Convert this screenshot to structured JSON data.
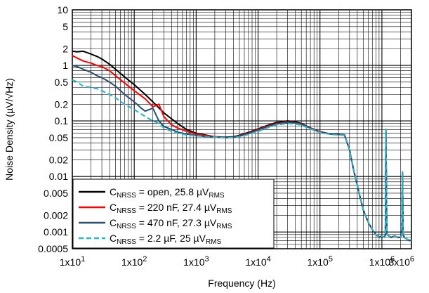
{
  "chart_data": {
    "type": "line",
    "xlabel": "Frequency (Hz)",
    "ylabel": "Noise Density (µV/√Hz)",
    "xscale": "log",
    "yscale": "log",
    "xlim": [
      10,
      3000000
    ],
    "ylim": [
      0.0005,
      10
    ],
    "grid": true,
    "legend_position": "bottom-left",
    "x_ticks": [
      {
        "value": 10,
        "label": "1x10",
        "exp": "1"
      },
      {
        "value": 100,
        "label": "1x10",
        "exp": "2"
      },
      {
        "value": 1000,
        "label": "1x10",
        "exp": "3"
      },
      {
        "value": 10000,
        "label": "1x10",
        "exp": "4"
      },
      {
        "value": 100000,
        "label": "1x10",
        "exp": "5"
      },
      {
        "value": 1000000,
        "label": "1x10",
        "exp": "6"
      },
      {
        "value": 3000000,
        "label": "3x10",
        "exp": "6"
      }
    ],
    "y_ticks": [
      {
        "value": 10,
        "label": "10"
      },
      {
        "value": 5,
        "label": "5"
      },
      {
        "value": 2,
        "label": "2"
      },
      {
        "value": 1,
        "label": "1"
      },
      {
        "value": 0.5,
        "label": "0.5"
      },
      {
        "value": 0.2,
        "label": "0.2"
      },
      {
        "value": 0.1,
        "label": "0.1"
      },
      {
        "value": 0.05,
        "label": "0.05"
      },
      {
        "value": 0.02,
        "label": "0.02"
      },
      {
        "value": 0.01,
        "label": "0.01"
      },
      {
        "value": 0.005,
        "label": "0.005"
      },
      {
        "value": 0.002,
        "label": "0.002"
      },
      {
        "value": 0.001,
        "label": "0.001"
      },
      {
        "value": 0.0005,
        "label": "0.0005"
      }
    ],
    "series": [
      {
        "legend_main": "C",
        "legend_sub": "NRSS",
        "legend_text": " = open, 25.8 µV",
        "legend_sub2": "RMS",
        "color": "#000000",
        "dash": "",
        "x": [
          10,
          12,
          15,
          20,
          25,
          30,
          40,
          50,
          70,
          100,
          150,
          200,
          300,
          500,
          700,
          1000,
          1500,
          2000,
          3000,
          4000,
          5000,
          7000,
          10000,
          15000,
          20000,
          30000,
          40000,
          50000,
          70000,
          100000,
          150000,
          200000,
          250000,
          300000,
          350000,
          400000,
          450000,
          500000,
          600000,
          700000,
          800000,
          900000,
          1000000,
          1100000,
          1140000,
          1160000,
          1200000,
          1400000,
          1600000,
          1800000,
          2000000,
          2100000,
          2150000,
          2200000,
          2300000,
          2500000,
          2800000,
          3000000
        ],
        "y": [
          1.8,
          1.75,
          1.8,
          1.6,
          1.45,
          1.3,
          1.05,
          0.85,
          0.62,
          0.45,
          0.3,
          0.22,
          0.14,
          0.09,
          0.07,
          0.06,
          0.055,
          0.052,
          0.051,
          0.052,
          0.055,
          0.062,
          0.072,
          0.085,
          0.094,
          0.1,
          0.097,
          0.09,
          0.075,
          0.064,
          0.058,
          0.057,
          0.056,
          0.03,
          0.013,
          0.007,
          0.004,
          0.0025,
          0.0015,
          0.0011,
          0.0009,
          0.0008,
          0.00085,
          0.0008,
          0.0009,
          0.07,
          0.0009,
          0.0008,
          0.00085,
          0.0008,
          0.0008,
          0.0009,
          0.012,
          0.0009,
          0.0008,
          0.00075,
          0.0007,
          0.00072
        ]
      },
      {
        "legend_main": "C",
        "legend_sub": "NRSS",
        "legend_text": " = 220 nF, 27.4 µV",
        "legend_sub2": "RMS",
        "color": "#ff0000",
        "dash": "",
        "x": [
          10,
          12,
          15,
          20,
          25,
          30,
          40,
          50,
          70,
          100,
          150,
          200,
          250,
          300,
          400,
          500,
          700,
          1000,
          1500,
          2000,
          3000,
          4000,
          5000,
          7000,
          10000,
          15000,
          20000,
          30000,
          40000,
          50000,
          70000,
          100000,
          150000,
          200000,
          250000,
          300000,
          350000,
          400000,
          450000,
          500000,
          600000,
          700000,
          800000,
          900000,
          1000000,
          1100000,
          1140000,
          1160000,
          1200000,
          1400000,
          1600000,
          1800000,
          2000000,
          2100000,
          2150000,
          2200000,
          2300000,
          2500000,
          2800000,
          3000000
        ],
        "y": [
          1.5,
          1.35,
          1.2,
          1.1,
          1.0,
          0.95,
          0.8,
          0.65,
          0.48,
          0.35,
          0.25,
          0.18,
          0.2,
          0.12,
          0.085,
          0.075,
          0.065,
          0.058,
          0.054,
          0.052,
          0.05,
          0.051,
          0.054,
          0.06,
          0.07,
          0.082,
          0.09,
          0.096,
          0.093,
          0.088,
          0.075,
          0.064,
          0.058,
          0.057,
          0.056,
          0.03,
          0.013,
          0.007,
          0.004,
          0.0025,
          0.0015,
          0.0011,
          0.0009,
          0.0008,
          0.00085,
          0.0008,
          0.0009,
          0.07,
          0.0009,
          0.0008,
          0.00085,
          0.0008,
          0.0008,
          0.0009,
          0.012,
          0.0009,
          0.0008,
          0.00075,
          0.0007,
          0.00072
        ]
      },
      {
        "legend_main": "C",
        "legend_sub": "NRSS",
        "legend_text": " = 470 nF, 27.3 µV",
        "legend_sub2": "RMS",
        "color": "#2a5070",
        "dash": "",
        "x": [
          10,
          12,
          15,
          20,
          25,
          30,
          40,
          50,
          70,
          100,
          130,
          150,
          200,
          250,
          300,
          400,
          500,
          700,
          1000,
          1500,
          2000,
          3000,
          4000,
          5000,
          7000,
          10000,
          15000,
          20000,
          30000,
          40000,
          50000,
          70000,
          100000,
          150000,
          200000,
          250000,
          300000,
          350000,
          400000,
          450000,
          500000,
          600000,
          700000,
          800000,
          900000,
          1000000,
          1100000,
          1140000,
          1160000,
          1200000,
          1400000,
          1600000,
          1800000,
          2000000,
          2100000,
          2150000,
          2200000,
          2300000,
          2500000,
          2800000,
          3000000
        ],
        "y": [
          1.0,
          0.95,
          0.85,
          0.75,
          0.65,
          0.6,
          0.5,
          0.42,
          0.3,
          0.22,
          0.17,
          0.15,
          0.17,
          0.1,
          0.08,
          0.07,
          0.063,
          0.058,
          0.055,
          0.052,
          0.051,
          0.05,
          0.051,
          0.053,
          0.059,
          0.068,
          0.08,
          0.088,
          0.094,
          0.092,
          0.087,
          0.074,
          0.063,
          0.058,
          0.057,
          0.056,
          0.03,
          0.013,
          0.007,
          0.004,
          0.0025,
          0.0015,
          0.0011,
          0.0009,
          0.0008,
          0.00085,
          0.0008,
          0.0009,
          0.07,
          0.0009,
          0.0008,
          0.00085,
          0.0008,
          0.0008,
          0.0009,
          0.012,
          0.0009,
          0.0008,
          0.00075,
          0.0007,
          0.00072
        ]
      },
      {
        "legend_main": "C",
        "legend_sub": "NRSS",
        "legend_text": " = 2.2 µF, 25 µV",
        "legend_sub2": "RMS",
        "color": "#20b8d0",
        "dash": "7,4",
        "x": [
          10,
          12,
          15,
          20,
          25,
          30,
          40,
          50,
          70,
          100,
          150,
          200,
          250,
          300,
          400,
          500,
          700,
          1000,
          1500,
          2000,
          3000,
          4000,
          5000,
          7000,
          10000,
          15000,
          20000,
          30000,
          40000,
          50000,
          70000,
          100000,
          150000,
          200000,
          250000,
          300000,
          350000,
          400000,
          450000,
          500000,
          600000,
          700000,
          800000,
          900000,
          1000000,
          1100000,
          1140000,
          1160000,
          1200000,
          1400000,
          1600000,
          1800000,
          2000000,
          2100000,
          2150000,
          2200000,
          2300000,
          2500000,
          2800000,
          3000000
        ],
        "y": [
          0.55,
          0.5,
          0.42,
          0.4,
          0.38,
          0.35,
          0.3,
          0.26,
          0.2,
          0.16,
          0.12,
          0.1,
          0.09,
          0.075,
          0.065,
          0.06,
          0.056,
          0.054,
          0.052,
          0.051,
          0.05,
          0.05,
          0.052,
          0.057,
          0.065,
          0.077,
          0.085,
          0.09,
          0.088,
          0.084,
          0.072,
          0.062,
          0.057,
          0.056,
          0.055,
          0.03,
          0.013,
          0.007,
          0.004,
          0.0025,
          0.0015,
          0.0011,
          0.0009,
          0.0008,
          0.00085,
          0.0008,
          0.0009,
          0.07,
          0.0009,
          0.0008,
          0.00085,
          0.0008,
          0.0008,
          0.0009,
          0.012,
          0.0009,
          0.0008,
          0.00075,
          0.0007,
          0.00072
        ]
      }
    ]
  }
}
